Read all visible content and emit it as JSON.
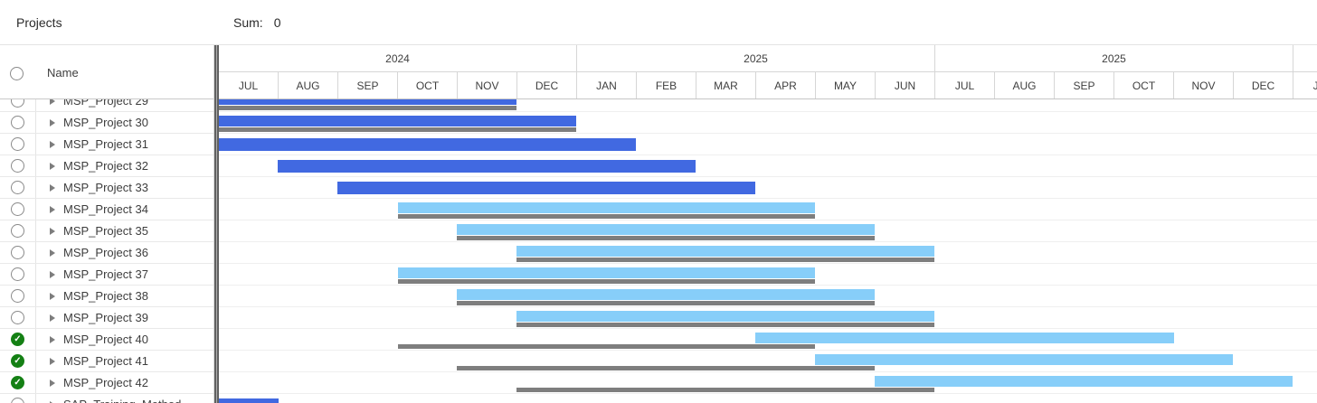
{
  "header": {
    "title": "Projects",
    "sum_label": "Sum:",
    "sum_value": "0"
  },
  "left_panel": {
    "name_header": "Name"
  },
  "colors": {
    "dark_blue": "#4169e1",
    "light_blue": "#87cef9",
    "bar_gray": "#7e7e7e",
    "done_green": "#148014"
  },
  "timeline": {
    "year_groups": [
      {
        "year": "2024",
        "months": [
          "JUL",
          "AUG",
          "SEP",
          "OCT",
          "NOV",
          "DEC"
        ],
        "partial": false
      },
      {
        "year": "2025",
        "months": [
          "JAN",
          "FEB",
          "MAR",
          "APR",
          "MAY",
          "JUN"
        ],
        "partial": false
      },
      {
        "year": "2025",
        "months": [
          "JUL",
          "AUG",
          "SEP",
          "OCT",
          "NOV",
          "DEC"
        ],
        "partial": false
      },
      {
        "year": "",
        "months": [
          "JAN"
        ],
        "partial": true
      }
    ]
  },
  "rows": [
    {
      "name": "MSP_Project 29",
      "status": "none",
      "bars": {
        "kind": "stacked",
        "palette": "dark",
        "main": [
          0,
          329
        ],
        "gray": [
          0,
          329
        ]
      }
    },
    {
      "name": "MSP_Project 30",
      "status": "none",
      "bars": {
        "kind": "stacked",
        "palette": "dark",
        "main": [
          0,
          395
        ],
        "gray": [
          0,
          395
        ]
      }
    },
    {
      "name": "MSP_Project 31",
      "status": "none",
      "bars": {
        "kind": "solid",
        "palette": "dark",
        "main": [
          0,
          461
        ]
      }
    },
    {
      "name": "MSP_Project 32",
      "status": "none",
      "bars": {
        "kind": "solid",
        "palette": "dark",
        "main": [
          65,
          462
        ]
      }
    },
    {
      "name": "MSP_Project 33",
      "status": "none",
      "bars": {
        "kind": "solid",
        "palette": "dark",
        "main": [
          131,
          462
        ]
      }
    },
    {
      "name": "MSP_Project 34",
      "status": "none",
      "bars": {
        "kind": "stacked",
        "palette": "light",
        "main": [
          198,
          461
        ],
        "gray": [
          198,
          461
        ]
      }
    },
    {
      "name": "MSP_Project 35",
      "status": "none",
      "bars": {
        "kind": "stacked",
        "palette": "light",
        "main": [
          263,
          462
        ],
        "gray": [
          263,
          462
        ]
      }
    },
    {
      "name": "MSP_Project 36",
      "status": "none",
      "bars": {
        "kind": "stacked",
        "palette": "light",
        "main": [
          329,
          462
        ],
        "gray": [
          329,
          462
        ]
      }
    },
    {
      "name": "MSP_Project 37",
      "status": "none",
      "bars": {
        "kind": "stacked",
        "palette": "light",
        "main": [
          198,
          461
        ],
        "gray": [
          198,
          461
        ]
      }
    },
    {
      "name": "MSP_Project 38",
      "status": "none",
      "bars": {
        "kind": "stacked",
        "palette": "light",
        "main": [
          263,
          462
        ],
        "gray": [
          263,
          462
        ]
      }
    },
    {
      "name": "MSP_Project 39",
      "status": "none",
      "bars": {
        "kind": "stacked",
        "palette": "light",
        "main": [
          329,
          462
        ],
        "gray": [
          329,
          462
        ]
      }
    },
    {
      "name": "MSP_Project 40",
      "status": "done",
      "bars": {
        "kind": "offset",
        "palette": "light",
        "main": [
          593,
          463
        ],
        "gray": [
          198,
          461
        ]
      }
    },
    {
      "name": "MSP_Project 41",
      "status": "done",
      "bars": {
        "kind": "offset",
        "palette": "light",
        "main": [
          659,
          462
        ],
        "gray": [
          263,
          462
        ]
      }
    },
    {
      "name": "MSP_Project 42",
      "status": "done",
      "bars": {
        "kind": "offset",
        "palette": "light",
        "main": [
          725,
          462
        ],
        "gray": [
          329,
          462
        ]
      }
    },
    {
      "name": "SAP_Training_Method",
      "status": "none",
      "bars": {
        "kind": "solid",
        "palette": "dark",
        "main": [
          0,
          66
        ]
      }
    }
  ]
}
